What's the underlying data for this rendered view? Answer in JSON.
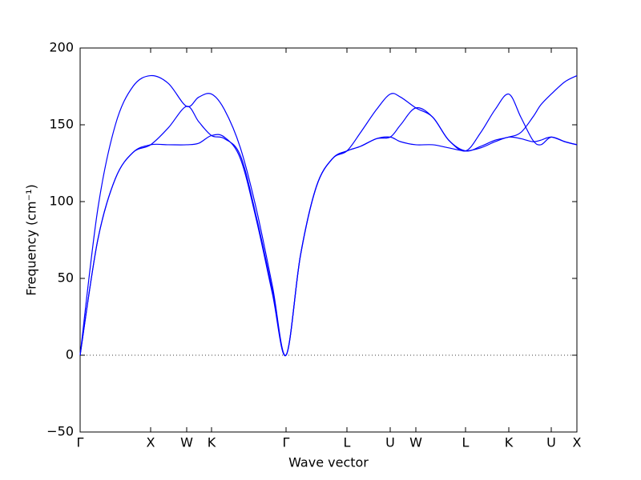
{
  "chart_data": {
    "type": "line",
    "xlabel": "Wave vector",
    "ylabel": "Frequency (cm⁻¹)",
    "xlim": [
      0,
      620
    ],
    "ylim": [
      -50,
      200
    ],
    "xticks": [
      {
        "value": 0,
        "label": "Γ"
      },
      {
        "value": 88,
        "label": "X"
      },
      {
        "value": 133,
        "label": "W"
      },
      {
        "value": 164,
        "label": "K"
      },
      {
        "value": 257,
        "label": "Γ"
      },
      {
        "value": 333,
        "label": "L"
      },
      {
        "value": 387,
        "label": "U"
      },
      {
        "value": 419,
        "label": "W"
      },
      {
        "value": 481,
        "label": "L"
      },
      {
        "value": 535,
        "label": "K"
      },
      {
        "value": 588,
        "label": "U"
      },
      {
        "value": 620,
        "label": "X"
      }
    ],
    "yticks": [
      {
        "value": -50,
        "label": "−50"
      },
      0,
      50,
      100,
      150,
      200
    ],
    "hline": 0,
    "x": [
      0,
      22,
      44,
      66,
      88,
      110,
      133,
      148,
      164,
      180,
      200,
      220,
      240,
      257,
      275,
      295,
      315,
      333,
      350,
      370,
      387,
      400,
      419,
      440,
      460,
      481,
      500,
      518,
      535,
      550,
      565,
      575,
      588,
      605,
      620
    ],
    "series": [
      {
        "color": "#0000ff",
        "values": [
          0,
          95,
          150,
          175,
          182,
          177,
          162,
          168,
          170,
          160,
          135,
          95,
          45,
          0,
          65,
          110,
          128,
          133,
          145,
          160,
          170,
          168,
          161,
          155,
          140,
          133,
          145,
          160,
          170,
          155,
          140,
          137,
          142,
          139,
          137
        ]
      },
      {
        "color": "#0000ff",
        "values": [
          0,
          75,
          115,
          132,
          137,
          148,
          162,
          152,
          143,
          141,
          130,
          90,
          42,
          0,
          65,
          110,
          128,
          133,
          136,
          141,
          142,
          150,
          161,
          155,
          140,
          133,
          136,
          140,
          142,
          145,
          155,
          163,
          170,
          178,
          182
        ]
      },
      {
        "color": "#0000ff",
        "values": [
          0,
          75,
          115,
          132,
          137,
          137,
          137,
          138,
          143,
          142,
          128,
          88,
          40,
          0,
          65,
          110,
          128,
          133,
          136,
          141,
          142,
          139,
          137,
          137,
          135,
          133,
          135,
          139,
          142,
          141,
          139,
          140,
          142,
          139,
          137
        ]
      }
    ]
  }
}
